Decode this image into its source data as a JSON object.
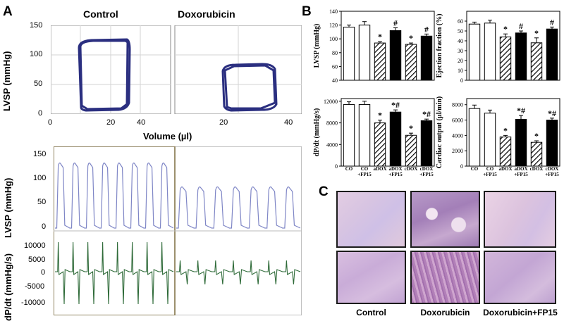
{
  "panels": {
    "A": "A",
    "B": "B",
    "C": "C"
  },
  "pv_loops": {
    "titles": [
      "Control",
      "Doxorubicin"
    ],
    "ylabel": "LVSP (mmHg)",
    "xlabel": "Volume (µl)",
    "yticks": [
      "150",
      "100",
      "50",
      "0"
    ],
    "xticks": [
      "0",
      "20",
      "40"
    ],
    "xticks2": [
      "20",
      "40"
    ]
  },
  "traces": {
    "lvsp_label": "LVSP (mmHg)",
    "dpdt_label": "dP/dt (mmHg/s)",
    "lvsp_ticks": [
      "150",
      "100",
      "50",
      "0"
    ],
    "dpdt_ticks": [
      "10000",
      "5000",
      "0",
      "-5000",
      "-10000"
    ],
    "line_color_lvsp": "#7f86c6",
    "line_color_dpdt": "#2f6b39"
  },
  "chart_data": [
    {
      "type": "bar",
      "title": "",
      "ylabel": "LVSP (mmHg)",
      "categories": [
        "CO",
        "CO +FP15",
        "aDOX",
        "aDOX +FP15",
        "cDOX",
        "cDOX +FP15"
      ],
      "values": [
        117,
        120,
        94,
        112,
        92,
        104
      ],
      "errors": [
        3,
        5,
        2,
        4,
        2,
        3
      ],
      "marks": [
        "",
        "",
        "*",
        "#",
        "*",
        "#"
      ],
      "ylim": [
        40,
        140
      ],
      "yticks": [
        "140",
        "120",
        "100",
        "80",
        "60",
        "40"
      ]
    },
    {
      "type": "bar",
      "title": "",
      "ylabel": "Ejection fraction (%)",
      "categories": [
        "CO",
        "CO +FP15",
        "aDOX",
        "aDOX +FP15",
        "cDOX",
        "cDOX +FP15"
      ],
      "values": [
        57,
        58,
        44,
        48,
        38,
        52
      ],
      "errors": [
        2,
        3,
        3,
        2,
        5,
        2
      ],
      "marks": [
        "",
        "",
        "*",
        "#",
        "*",
        "#"
      ],
      "ylim": [
        0,
        70
      ],
      "yticks": [
        "60",
        "50",
        "40",
        "30",
        "20",
        "10",
        "0"
      ]
    },
    {
      "type": "bar",
      "title": "",
      "ylabel": "dP/dt (mmHg/s)",
      "categories": [
        "CO",
        "CO +FP15",
        "aDOX",
        "aDOX +FP15",
        "cDOX",
        "cDOX +FP15"
      ],
      "values": [
        11400,
        11400,
        8000,
        10000,
        5700,
        8400
      ],
      "errors": [
        500,
        600,
        500,
        400,
        400,
        300
      ],
      "marks": [
        "",
        "",
        "*",
        "*#",
        "*",
        "*#"
      ],
      "ylim": [
        0,
        12500
      ],
      "yticks": [
        "12000",
        "8000",
        "4000",
        "0"
      ]
    },
    {
      "type": "bar",
      "title": "",
      "ylabel": "Cardiac output (µl/min)",
      "categories": [
        "CO",
        "CO +FP15",
        "aDOX",
        "aDOX +FP15",
        "cDOX",
        "cDOX +FP15"
      ],
      "values": [
        7500,
        6900,
        3800,
        6100,
        3100,
        6000
      ],
      "errors": [
        450,
        400,
        200,
        500,
        200,
        250
      ],
      "marks": [
        "",
        "",
        "*",
        "*#",
        "*",
        "*#"
      ],
      "ylim": [
        0,
        8800
      ],
      "yticks": [
        "8000",
        "6000",
        "4000",
        "2000",
        "0"
      ]
    }
  ],
  "histology": {
    "labels": [
      "Control",
      "Doxorubicin",
      "Doxorubicin+FP15"
    ]
  },
  "colors": {
    "loop": "#2b2f80",
    "grid": "#d7d7d7",
    "frame": "#5a5a5a"
  }
}
